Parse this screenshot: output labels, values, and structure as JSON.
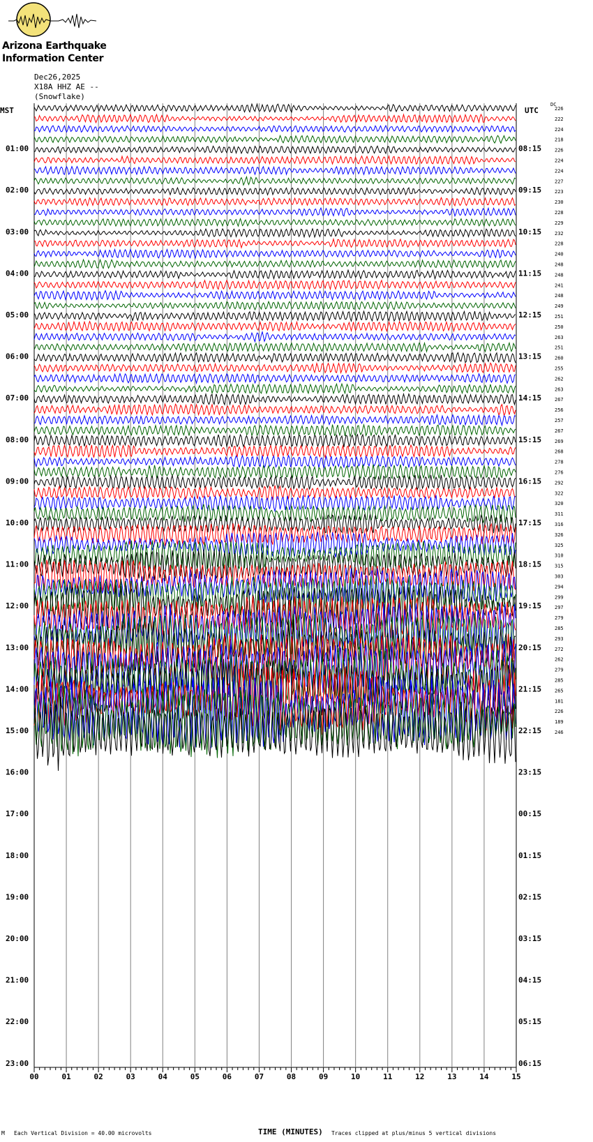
{
  "header": {
    "organization_line1": "Arizona Earthquake",
    "organization_line2": "Information Center",
    "logo_text": "AEIC",
    "date": "Dec26,2025",
    "station": "X18A HHZ AE --",
    "location": "(Snowflake)"
  },
  "left_tz": "MST",
  "right_tz": "UTC",
  "dc_header": "DC",
  "footer": {
    "xlabel": "TIME (MINUTES)",
    "scale_note": "Each Vertical Division =   40.00 microvolts",
    "clip_note": "Traces clipped at plus/minus 5 vertical divisions",
    "corner_mark": "M"
  },
  "colors": {
    "trace_cycle": [
      "#000000",
      "#ff0000",
      "#0000ff",
      "#006400"
    ],
    "grid": "#808080"
  },
  "chart_data": {
    "type": "line",
    "title": "",
    "xlabel": "TIME (MINUTES)",
    "ylabel": "",
    "x_ticks": [
      "00",
      "01",
      "02",
      "03",
      "04",
      "05",
      "06",
      "07",
      "08",
      "09",
      "10",
      "11",
      "12",
      "13",
      "14",
      "15"
    ],
    "xlim": [
      0,
      15
    ],
    "left_hour_labels": [
      "01:00",
      "02:00",
      "03:00",
      "04:00",
      "05:00",
      "06:00",
      "07:00",
      "08:00",
      "09:00",
      "10:00",
      "11:00",
      "12:00",
      "13:00",
      "14:00",
      "15:00",
      "16:00",
      "17:00",
      "18:00",
      "19:00",
      "20:00",
      "21:00",
      "22:00",
      "23:00"
    ],
    "right_hour_labels": [
      "08:15",
      "09:15",
      "10:15",
      "11:15",
      "12:15",
      "13:15",
      "14:15",
      "15:15",
      "16:15",
      "17:15",
      "18:15",
      "19:15",
      "20:15",
      "21:15",
      "22:15",
      "23:15",
      "00:15",
      "01:15",
      "02:15",
      "03:15",
      "04:15",
      "05:15",
      "06:15"
    ],
    "dc_offsets": [
      226,
      222,
      224,
      218,
      226,
      224,
      224,
      227,
      223,
      230,
      228,
      229,
      232,
      228,
      240,
      248,
      248,
      241,
      248,
      249,
      251,
      250,
      263,
      251,
      260,
      255,
      262,
      263,
      267,
      256,
      257,
      267,
      269,
      268,
      278,
      276,
      292,
      322,
      320,
      311,
      316,
      326,
      325,
      310,
      315,
      303,
      294,
      299,
      297,
      279,
      285,
      293,
      272,
      262,
      279,
      285,
      265,
      181,
      226,
      189,
      246
    ],
    "trace_amplitude_profile": [
      0.55,
      0.55,
      0.55,
      0.55,
      0.55,
      0.55,
      0.55,
      0.55,
      0.55,
      0.55,
      0.55,
      0.55,
      0.6,
      0.6,
      0.6,
      0.6,
      0.6,
      0.6,
      0.6,
      0.6,
      0.65,
      0.65,
      0.65,
      0.65,
      0.7,
      0.7,
      0.7,
      0.7,
      0.75,
      0.75,
      0.8,
      0.8,
      0.85,
      0.85,
      0.9,
      0.95,
      1.0,
      1.1,
      1.2,
      1.3,
      1.4,
      1.6,
      1.8,
      2.0,
      2.2,
      2.4,
      2.6,
      2.8,
      3.0,
      3.2,
      3.4,
      3.6,
      3.8,
      4.0,
      4.2,
      4.4,
      4.6,
      4.8,
      5.0,
      5.0,
      5.0
    ]
  }
}
